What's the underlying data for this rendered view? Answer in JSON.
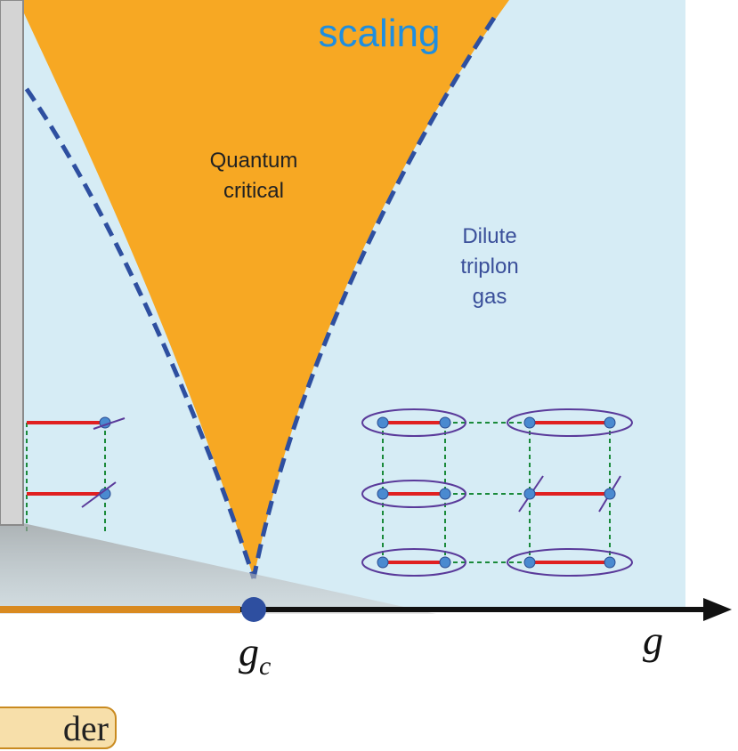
{
  "title": "scaling",
  "regions": {
    "quantum_critical": [
      "Quantum",
      "critical"
    ],
    "dilute": [
      "Dilute",
      "triplon",
      "gas"
    ]
  },
  "axis": {
    "gc": {
      "main": "g",
      "sub": "c"
    },
    "g": "g"
  },
  "order_label": "der"
}
